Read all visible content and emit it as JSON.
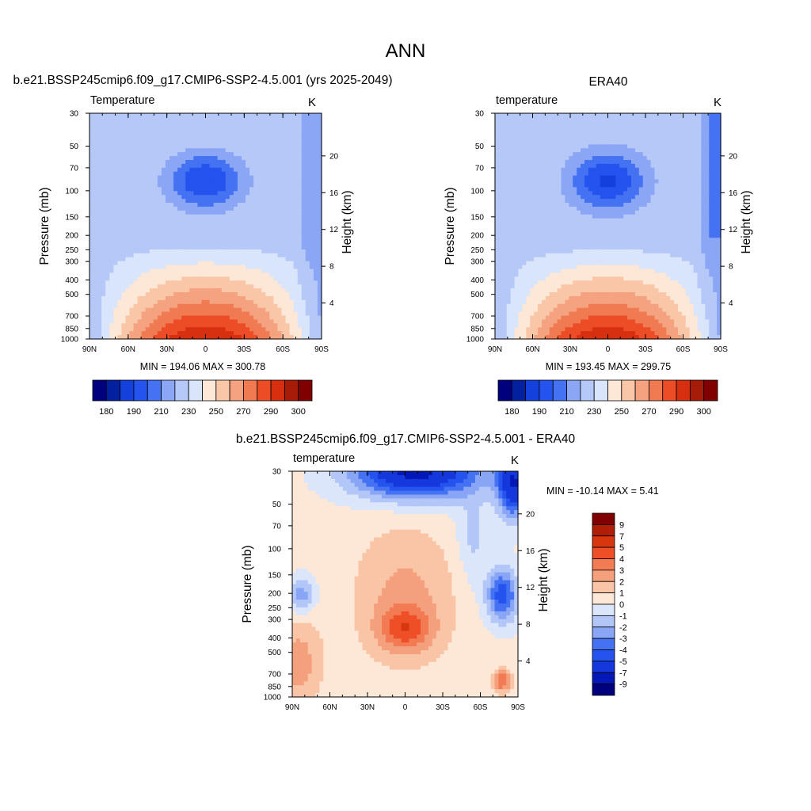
{
  "page": {
    "title": "ANN"
  },
  "panels": [
    {
      "id": "model",
      "header": "b.e21.BSSP245cmip6.f09_g17.CMIP6-SSP2-4.5.001 (yrs 2025-2049)",
      "variable": "Temperature",
      "units": "K",
      "stats": "MIN = 194.06  MAX = 300.78"
    },
    {
      "id": "obs",
      "header": "ERA40",
      "variable": "temperature",
      "units": "K",
      "stats": "MIN = 193.45  MAX = 299.75"
    },
    {
      "id": "diff",
      "header": "b.e21.BSSP245cmip6.f09_g17.CMIP6-SSP2-4.5.001 - ERA40",
      "variable": "temperature",
      "units": "K",
      "stats": "MIN = -10.14  MAX =   5.41"
    }
  ],
  "chart_data": [
    {
      "type": "heatmap",
      "subtype": "filled-contour",
      "title": "b.e21.BSSP245cmip6.f09_g17.CMIP6-SSP2-4.5.001 (yrs 2025-2049)",
      "field": "Temperature",
      "units": "K",
      "ylabel": "Pressure (mb)",
      "y2label": "Height (km)",
      "x_ticks": [
        "90N",
        "60N",
        "30N",
        "0",
        "30S",
        "60S",
        "90S"
      ],
      "y_ticks": [
        "30",
        "50",
        "70",
        "100",
        "150",
        "200",
        "250",
        "300",
        "400",
        "500",
        "700",
        "850",
        "1000"
      ],
      "y2_ticks": [
        "4",
        "8",
        "12",
        "16",
        "20"
      ],
      "min": 194.06,
      "max": 300.78,
      "colorbar_orientation": "horizontal",
      "colorbar_labels": [
        "180",
        "190",
        "210",
        "230",
        "250",
        "270",
        "290",
        "300"
      ],
      "colors": [
        "#00007f",
        "#0220a0",
        "#1440dc",
        "#2453ee",
        "#4472f2",
        "#8aa6f5",
        "#b5c8f7",
        "#d9e5fb",
        "#fde7d6",
        "#f9c7a8",
        "#f4a27f",
        "#f07a52",
        "#ec4d27",
        "#d63010",
        "#a71c08",
        "#800000"
      ]
    },
    {
      "type": "heatmap",
      "subtype": "filled-contour",
      "title": "ERA40",
      "field": "temperature",
      "units": "K",
      "ylabel": "Pressure (mb)",
      "y2label": "Height (km)",
      "x_ticks": [
        "90N",
        "60N",
        "30N",
        "0",
        "30S",
        "60S",
        "90S"
      ],
      "y_ticks": [
        "30",
        "50",
        "70",
        "100",
        "150",
        "200",
        "250",
        "300",
        "400",
        "500",
        "700",
        "850",
        "1000"
      ],
      "y2_ticks": [
        "4",
        "8",
        "12",
        "16",
        "20"
      ],
      "min": 193.45,
      "max": 299.75,
      "colorbar_orientation": "horizontal",
      "colorbar_labels": [
        "180",
        "190",
        "210",
        "230",
        "250",
        "270",
        "290",
        "300"
      ],
      "colors": [
        "#00007f",
        "#0220a0",
        "#1440dc",
        "#2453ee",
        "#4472f2",
        "#8aa6f5",
        "#b5c8f7",
        "#d9e5fb",
        "#fde7d6",
        "#f9c7a8",
        "#f4a27f",
        "#f07a52",
        "#ec4d27",
        "#d63010",
        "#a71c08",
        "#800000"
      ]
    },
    {
      "type": "heatmap",
      "subtype": "filled-contour",
      "title": "b.e21.BSSP245cmip6.f09_g17.CMIP6-SSP2-4.5.001 - ERA40",
      "field": "temperature",
      "units": "K",
      "ylabel": "Pressure (mb)",
      "y2label": "Height (km)",
      "x_ticks": [
        "90N",
        "60N",
        "30N",
        "0",
        "30S",
        "60S",
        "90S"
      ],
      "y_ticks": [
        "30",
        "50",
        "70",
        "100",
        "150",
        "200",
        "250",
        "300",
        "400",
        "500",
        "700",
        "850",
        "1000"
      ],
      "y2_ticks": [
        "4",
        "8",
        "12",
        "16",
        "20"
      ],
      "min": -10.14,
      "max": 5.41,
      "colorbar_orientation": "vertical",
      "colorbar_labels": [
        "9",
        "7",
        "5",
        "4",
        "3",
        "2",
        "1",
        "0",
        "-1",
        "-2",
        "-3",
        "-4",
        "-5",
        "-7",
        "-9"
      ],
      "colors": [
        "#800000",
        "#b01e08",
        "#d8360f",
        "#ef4f26",
        "#f27b54",
        "#f5a07d",
        "#f9c5a6",
        "#fde8d8",
        "#dbe6fb",
        "#b2c6f7",
        "#89a5f5",
        "#4472f2",
        "#2453ee",
        "#1438dc",
        "#0418b8",
        "#00007f"
      ]
    }
  ]
}
